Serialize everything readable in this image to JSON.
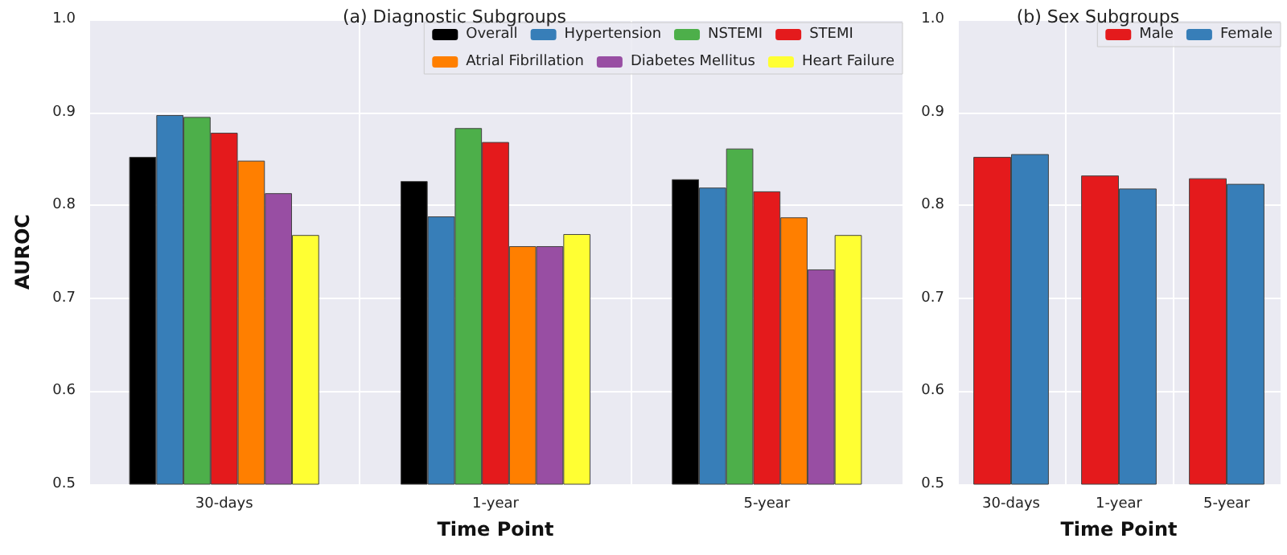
{
  "chart_data": [
    {
      "type": "bar",
      "title": "(a) Diagnostic Subgroups",
      "xlabel": "Time Point",
      "ylabel": "AUROC",
      "categories": [
        "30-days",
        "1-year",
        "5-year"
      ],
      "series": [
        {
          "name": "Overall",
          "color": "#000000",
          "values": [
            0.852,
            0.826,
            0.828
          ]
        },
        {
          "name": "Hypertension",
          "color": "#377eb8",
          "values": [
            0.897,
            0.788,
            0.819
          ]
        },
        {
          "name": "NSTEMI",
          "color": "#4daf4a",
          "values": [
            0.895,
            0.883,
            0.861
          ]
        },
        {
          "name": "STEMI",
          "color": "#e41a1c",
          "values": [
            0.878,
            0.868,
            0.815
          ]
        },
        {
          "name": "Atrial Fibrillation",
          "color": "#ff7f00",
          "values": [
            0.848,
            0.756,
            0.787
          ]
        },
        {
          "name": "Diabetes Mellitus",
          "color": "#984ea3",
          "values": [
            0.813,
            0.756,
            0.731
          ]
        },
        {
          "name": "Heart Failure",
          "color": "#ffff33",
          "values": [
            0.768,
            0.769,
            0.768
          ]
        }
      ],
      "ylim": [
        0.5,
        1.0
      ],
      "yticks": [
        0.5,
        0.6,
        0.7,
        0.8,
        0.9,
        {
          "value": 1,
          "label": "1.0"
        }
      ],
      "grid": true,
      "legend": "top right"
    },
    {
      "type": "bar",
      "title": "(b) Sex Subgroups",
      "xlabel": "Time Point",
      "categories": [
        "30-days",
        "1-year",
        "5-year"
      ],
      "series": [
        {
          "name": "Male",
          "color": "#e41a1c",
          "values": [
            0.852,
            0.832,
            0.829
          ]
        },
        {
          "name": "Female",
          "color": "#377eb8",
          "values": [
            0.855,
            0.818,
            0.823
          ]
        }
      ],
      "ylim": [
        0.5,
        1.0
      ],
      "yticks": [
        0.5,
        0.6,
        0.7,
        0.8,
        0.9,
        {
          "value": 1,
          "label": "1.0"
        }
      ],
      "grid": true,
      "legend": "top right"
    }
  ]
}
